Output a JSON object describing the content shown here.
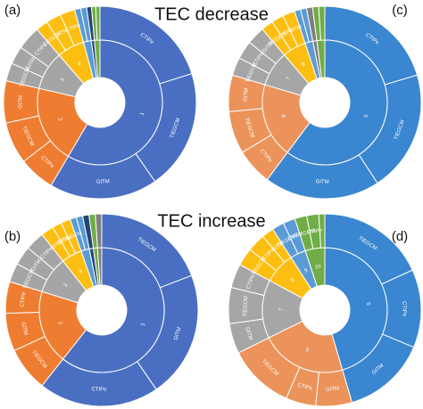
{
  "chart_data": [
    {
      "type": "sunburst",
      "label": "(a)",
      "title": "TEC decrease",
      "groups": [
        {
          "name": "1",
          "color": "#4a6fc2",
          "children": [
            {
              "name": "CTIPe",
              "value": 20
            },
            {
              "name": "TIEGCM",
              "value": 20
            },
            {
              "name": "GITM",
              "value": 18
            }
          ]
        },
        {
          "name": "2",
          "color": "#ee7d31",
          "children": [
            {
              "name": "CTIPe",
              "value": 6
            },
            {
              "name": "TIEGCM",
              "value": 7
            },
            {
              "name": "GITM",
              "value": 7
            }
          ]
        },
        {
          "name": "3",
          "color": "#a5a5a5",
          "children": [
            {
              "name": "TIEGCM",
              "value": 3
            },
            {
              "name": "GITM",
              "value": 3
            },
            {
              "name": "CTIPe",
              "value": 4
            }
          ]
        },
        {
          "name": "4",
          "color": "#fcbf11",
          "children": [
            {
              "name": "TIEGCM",
              "value": 2
            },
            {
              "name": "GITM",
              "value": 2.5
            },
            {
              "name": "CTIPe",
              "value": 2.5
            }
          ]
        },
        {
          "name": null,
          "color": "#5b9bd5",
          "children": [
            {
              "name": null,
              "value": 1
            },
            {
              "name": null,
              "value": 1
            }
          ]
        },
        {
          "name": null,
          "color": "#264478",
          "children": [
            {
              "name": null,
              "value": 0.8
            }
          ]
        },
        {
          "name": null,
          "color": "#70ad47",
          "children": [
            {
              "name": null,
              "value": 0.7
            },
            {
              "name": null,
              "value": 0.7
            }
          ]
        }
      ]
    },
    {
      "type": "sunburst",
      "label": "(c)",
      "groups": [
        {
          "name": "5",
          "color": "#3a86d0",
          "children": [
            {
              "name": "CTIPe",
              "value": 20
            },
            {
              "name": "TIEGCM",
              "value": 20
            },
            {
              "name": "GITM",
              "value": 19
            }
          ]
        },
        {
          "name": "6",
          "color": "#eb935a",
          "children": [
            {
              "name": "CTIPe",
              "value": 6
            },
            {
              "name": "TIEGCM",
              "value": 7
            },
            {
              "name": "GITM",
              "value": 6
            }
          ]
        },
        {
          "name": "7",
          "color": "#a6a6a6",
          "children": [
            {
              "name": "TIEGCM",
              "value": 3
            },
            {
              "name": "CTIPe",
              "value": 3
            },
            {
              "name": "GITM",
              "value": 3
            }
          ]
        },
        {
          "name": "8",
          "color": "#fcbf11",
          "children": [
            {
              "name": "TIEGCM",
              "value": 2
            },
            {
              "name": "CTIPe",
              "value": 2
            },
            {
              "name": "GITM",
              "value": 2
            }
          ]
        },
        {
          "name": null,
          "color": "#5b9bd5",
          "children": [
            {
              "name": null,
              "value": 1
            },
            {
              "name": null,
              "value": 1
            }
          ]
        },
        {
          "name": null,
          "color": "#7f7f7f",
          "children": [
            {
              "name": null,
              "value": 1
            }
          ]
        },
        {
          "name": null,
          "color": "#70ad47",
          "children": [
            {
              "name": null,
              "value": 1
            },
            {
              "name": null,
              "value": 1
            }
          ]
        }
      ]
    },
    {
      "type": "sunburst",
      "label": "(b)",
      "title": "TEC increase",
      "groups": [
        {
          "name": "1",
          "color": "#4a6fc2",
          "children": [
            {
              "name": "TIEGCM",
              "value": 18
            },
            {
              "name": "GITM",
              "value": 20
            },
            {
              "name": "CTIPe",
              "value": 19
            }
          ]
        },
        {
          "name": "2",
          "color": "#ee7d31",
          "children": [
            {
              "name": "TIEGCM",
              "value": 7
            },
            {
              "name": "GITM",
              "value": 6
            },
            {
              "name": "CTIPe",
              "value": 5
            }
          ]
        },
        {
          "name": "3",
          "color": "#a5a5a5",
          "children": [
            {
              "name": "TIEGCM",
              "value": 3
            },
            {
              "name": "GITM",
              "value": 3
            },
            {
              "name": "CTIPe",
              "value": 3
            }
          ]
        },
        {
          "name": "4",
          "color": "#fcbf11",
          "children": [
            {
              "name": "GITM",
              "value": 2
            },
            {
              "name": "CTIPe",
              "value": 1.5
            },
            {
              "name": "TIEGCM",
              "value": 1.5
            }
          ]
        },
        {
          "name": null,
          "color": "#5b9bd5",
          "children": [
            {
              "name": null,
              "value": 1
            },
            {
              "name": null,
              "value": 1
            }
          ]
        },
        {
          "name": null,
          "color": "#264478",
          "children": [
            {
              "name": null,
              "value": 1
            }
          ]
        },
        {
          "name": null,
          "color": "#70ad47",
          "children": [
            {
              "name": null,
              "value": 1
            }
          ]
        },
        {
          "name": null,
          "color": "#7f7f7f",
          "children": [
            {
              "name": null,
              "value": 1
            }
          ]
        }
      ]
    },
    {
      "type": "sunburst",
      "label": "(d)",
      "groups": [
        {
          "name": "5",
          "color": "#3a86d0",
          "children": [
            {
              "name": "TIEGCM",
              "value": 18
            },
            {
              "name": "CTIPe",
              "value": 13
            },
            {
              "name": "GITM",
              "value": 14
            }
          ]
        },
        {
          "name": "6",
          "color": "#eb935a",
          "children": [
            {
              "name": "GITM",
              "value": 6
            },
            {
              "name": "CTIPe",
              "value": 5
            },
            {
              "name": "TIEGCM",
              "value": 11
            }
          ]
        },
        {
          "name": "7",
          "color": "#a6a6a6",
          "children": [
            {
              "name": "GITM",
              "value": 5
            },
            {
              "name": "TIEGCM",
              "value": 6
            },
            {
              "name": "CTIPe",
              "value": 4
            }
          ]
        },
        {
          "name": "8",
          "color": "#fcbf11",
          "children": [
            {
              "name": "TIEGCM",
              "value": 3
            },
            {
              "name": "CTIPe",
              "value": 3
            },
            {
              "name": "GITM",
              "value": 2
            }
          ]
        },
        {
          "name": "9",
          "color": "#5b9bd5",
          "children": [
            {
              "name": "TIEGCM",
              "value": 2
            },
            {
              "name": "CTIPe",
              "value": 2
            }
          ]
        },
        {
          "name": "10",
          "color": "#70ad47",
          "children": [
            {
              "name": "TIEGCM",
              "value": 2
            },
            {
              "name": "CTIPe",
              "value": 2
            },
            {
              "name": null,
              "value": 1
            }
          ]
        }
      ]
    }
  ]
}
